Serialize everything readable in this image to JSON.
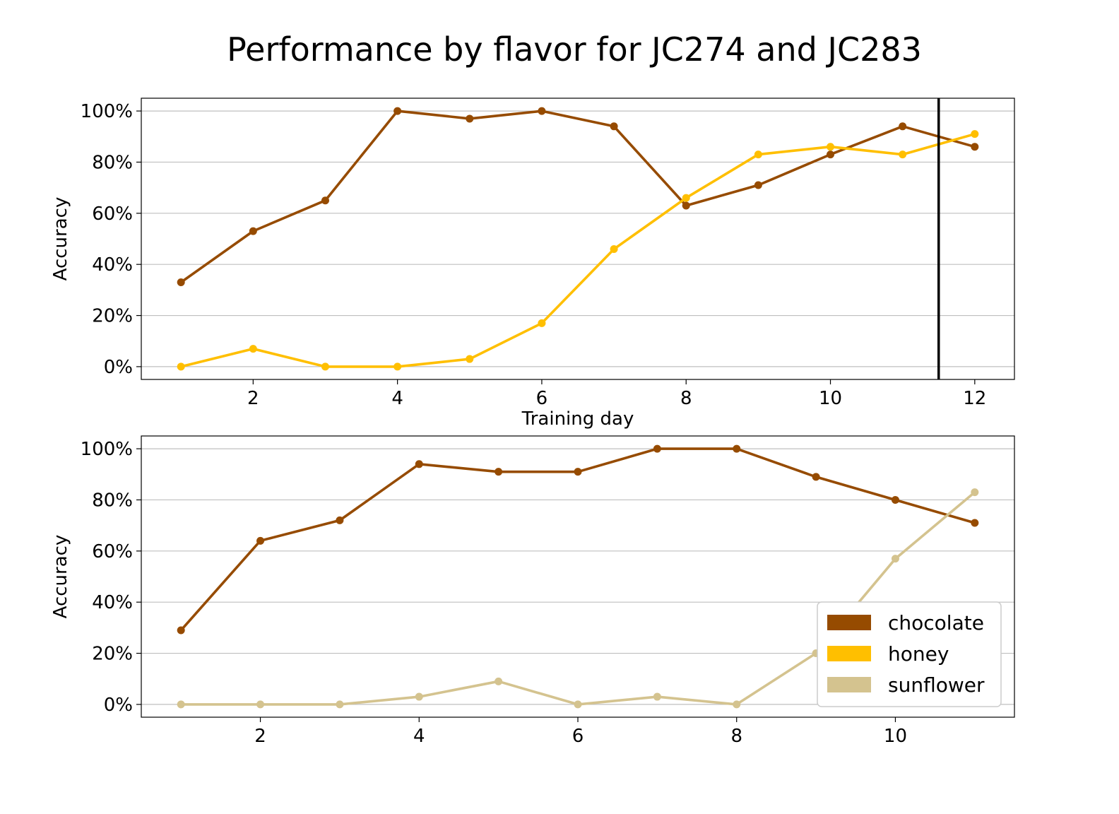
{
  "figure_title": "Performance by flavor for JC274 and JC283",
  "colors": {
    "chocolate": "#964B00",
    "honey": "#FFBF00",
    "sunflower": "#D4C38F",
    "marker_line": "#000000",
    "grid": "#bfbfbf"
  },
  "legend": {
    "placement": "lower-right of bottom panel",
    "items": [
      {
        "label": "chocolate",
        "color": "#964B00"
      },
      {
        "label": "honey",
        "color": "#FFBF00"
      },
      {
        "label": "sunflower",
        "color": "#D4C38F"
      }
    ]
  },
  "chart_data": [
    {
      "type": "line",
      "panel": "top",
      "xlabel": "Training day",
      "ylabel": "Accuracy",
      "xlim": [
        0.45,
        12.55
      ],
      "ylim": [
        -5,
        105
      ],
      "xticks": [
        2,
        4,
        6,
        8,
        10,
        12
      ],
      "yticks": [
        0,
        20,
        40,
        60,
        80,
        100
      ],
      "ytick_labels": [
        "0%",
        "20%",
        "40%",
        "60%",
        "80%",
        "100%"
      ],
      "grid": "horizontal",
      "vertical_marker": {
        "x": 11.5,
        "color": "#000000"
      },
      "series": [
        {
          "name": "chocolate",
          "color": "#964B00",
          "x": [
            1,
            2,
            3,
            4,
            5,
            6,
            7,
            8,
            9,
            10,
            11,
            12
          ],
          "values": [
            33,
            53,
            65,
            100,
            97,
            100,
            94,
            63,
            71,
            83,
            94,
            86
          ]
        },
        {
          "name": "honey",
          "color": "#FFBF00",
          "x": [
            1,
            2,
            3,
            4,
            5,
            6,
            7,
            8,
            9,
            10,
            11,
            12
          ],
          "values": [
            0,
            7,
            0,
            0,
            3,
            17,
            46,
            66,
            83,
            86,
            83,
            91
          ]
        }
      ]
    },
    {
      "type": "line",
      "panel": "bottom",
      "xlabel": "",
      "ylabel": "Accuracy",
      "xlim": [
        0.5,
        11.5
      ],
      "ylim": [
        -5,
        105
      ],
      "xticks": [
        2,
        4,
        6,
        8,
        10
      ],
      "yticks": [
        0,
        20,
        40,
        60,
        80,
        100
      ],
      "ytick_labels": [
        "0%",
        "20%",
        "40%",
        "60%",
        "80%",
        "100%"
      ],
      "grid": "horizontal",
      "series": [
        {
          "name": "chocolate",
          "color": "#964B00",
          "x": [
            1,
            2,
            3,
            4,
            5,
            6,
            7,
            8,
            9,
            10,
            11
          ],
          "values": [
            29,
            64,
            72,
            94,
            91,
            91,
            100,
            100,
            89,
            80,
            71
          ]
        },
        {
          "name": "sunflower",
          "color": "#D4C38F",
          "x": [
            1,
            2,
            3,
            4,
            5,
            6,
            7,
            8,
            9,
            10,
            11
          ],
          "values": [
            0,
            0,
            0,
            3,
            9,
            0,
            3,
            0,
            20,
            57,
            83
          ]
        }
      ]
    }
  ]
}
